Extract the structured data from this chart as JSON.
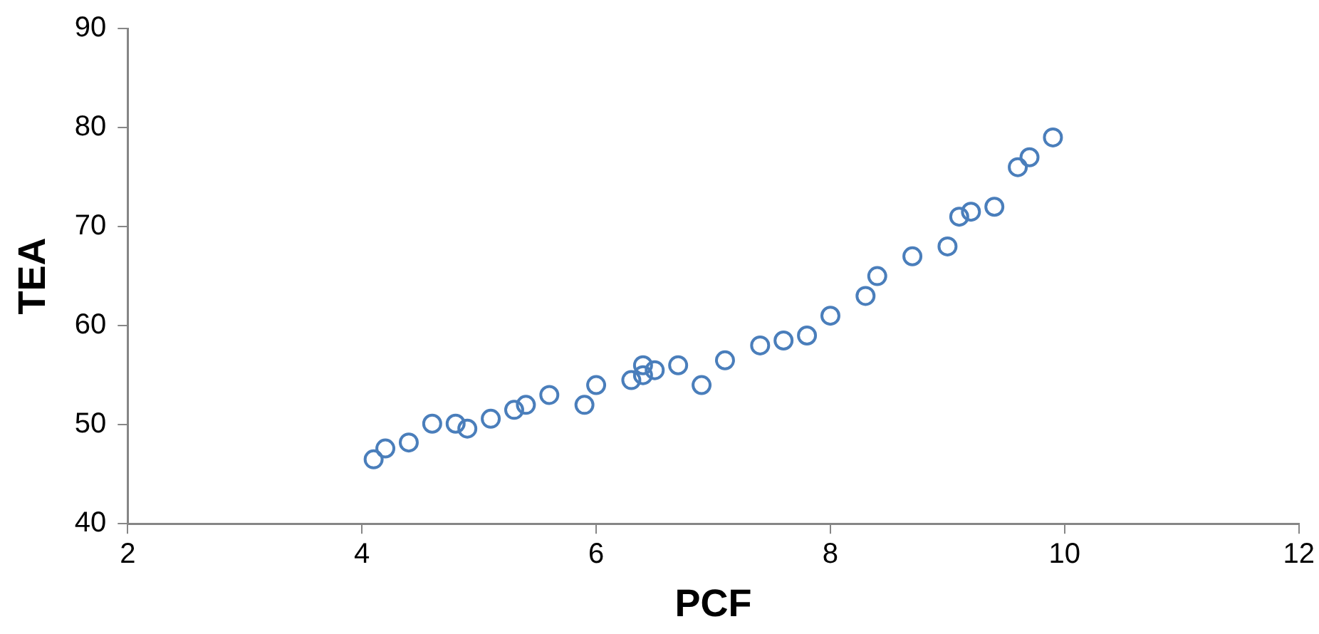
{
  "chart_data": {
    "type": "scatter",
    "xlabel": "PCF",
    "ylabel": "TEA",
    "marker": "circle",
    "grid": false,
    "legend": false,
    "xlim": [
      2,
      12
    ],
    "xticks": [
      2,
      4,
      6,
      8,
      10,
      12
    ],
    "ylim": [
      40,
      90
    ],
    "yticks": [
      40,
      50,
      60,
      70,
      80,
      90
    ],
    "series": [
      {
        "color": "#4a7ebb",
        "x": [
          4.1,
          4.2,
          4.4,
          4.6,
          4.8,
          4.9,
          5.1,
          5.3,
          5.4,
          5.6,
          5.9,
          6.0,
          6.3,
          6.4,
          6.4,
          6.5,
          6.7,
          6.9,
          7.1,
          7.4,
          7.6,
          7.8,
          8.0,
          8.3,
          8.4,
          8.7,
          9.0,
          9.1,
          9.2,
          9.4,
          9.6,
          9.7,
          9.9
        ],
        "values": [
          46.5,
          47.6,
          48.2,
          50.1,
          50.1,
          49.6,
          50.6,
          51.5,
          52,
          53,
          52,
          54,
          54.5,
          56,
          55,
          55.5,
          56,
          54,
          56.5,
          58,
          58.5,
          59,
          61,
          63,
          65,
          67,
          68,
          71,
          71.5,
          72,
          76,
          77,
          79
        ]
      }
    ]
  }
}
